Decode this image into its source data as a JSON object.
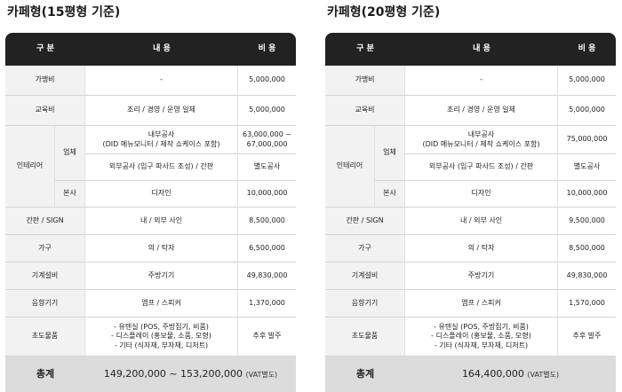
{
  "left": {
    "title": "카페형(15평형 기준)",
    "header": {
      "category": "구 분",
      "content": "내 용",
      "cost": "비 용"
    },
    "rows": {
      "franchise": {
        "category": "가맹비",
        "content": "-",
        "cost": "5,000,000"
      },
      "education": {
        "category": "교육비",
        "content": "조리 / 경영 / 운영 일체",
        "cost": "5,000,000"
      },
      "interior": {
        "category": "인테리어",
        "contractor_label": "업체",
        "internal_line1": "내부공사",
        "internal_line2": "(DID 메뉴모니터 / 제작 쇼케이스 포함)",
        "internal_cost_line1": "63,000,000 ~",
        "internal_cost_line2": "67,000,000",
        "external_content": "외부공사 (입구 파사드 조성) / 간판",
        "external_cost": "별도공사",
        "hq_label": "본사",
        "design_content": "디자인",
        "design_cost": "10,000,000"
      },
      "sign": {
        "category": "간판 / SIGN",
        "content": "내 / 외부 사인",
        "cost": "8,500,000"
      },
      "furniture": {
        "category": "가구",
        "content": "의 / 탁자",
        "cost": "6,500,000"
      },
      "equipment": {
        "category": "기계설비",
        "content": "주방기기",
        "cost": "49,830,000"
      },
      "audio": {
        "category": "음향기기",
        "content": "앰프 / 스피커",
        "cost": "1,370,000"
      },
      "initial": {
        "category": "초도물품",
        "line1": "- 유텐실 (POS, 주방집기, 비품)",
        "line2": "- 디스플레이 (홍보물, 소품, 모형)",
        "line3": "- 기타 (식자재, 부자재, 디저트)",
        "cost": "추후 발주"
      }
    },
    "total": {
      "label": "총계",
      "value": "149,200,000 ~ 153,200,000",
      "vat": "(VAT별도)"
    }
  },
  "right": {
    "title": "카페형(20평형 기준)",
    "header": {
      "category": "구 분",
      "content": "내 용",
      "cost": "비 용"
    },
    "rows": {
      "franchise": {
        "category": "가맹비",
        "content": "-",
        "cost": "5,000,000"
      },
      "education": {
        "category": "교육비",
        "content": "조리 / 경영 / 운영 일체",
        "cost": "5,000,000"
      },
      "interior": {
        "category": "인테리어",
        "contractor_label": "업체",
        "internal_line1": "내부공사",
        "internal_line2": "(DID 메뉴모니터 / 제작 쇼케이스 포함)",
        "internal_cost": "75,000,000",
        "external_content": "외부공사 (입구 파사드 조성) / 간판",
        "external_cost": "별도공사",
        "hq_label": "본사",
        "design_content": "디자인",
        "design_cost": "10,000,000"
      },
      "sign": {
        "category": "간판 / SIGN",
        "content": "내 / 외부 사인",
        "cost": "9,500,000"
      },
      "furniture": {
        "category": "가구",
        "content": "의 / 탁자",
        "cost": "8,500,000"
      },
      "equipment": {
        "category": "기계설비",
        "content": "주방기기",
        "cost": "49,830,000"
      },
      "audio": {
        "category": "음향기기",
        "content": "앰프 / 스피커",
        "cost": "1,570,000"
      },
      "initial": {
        "category": "초도물품",
        "line1": "- 유텐실 (POS, 주방집기, 비품)",
        "line2": "- 디스플레이 (홍보물, 소품, 모형)",
        "line3": "- 기타 (식자재, 부자재, 디저트)",
        "cost": "추후 발주"
      }
    },
    "total": {
      "label": "총계",
      "value": "164,400,000",
      "vat": "(VAT별도)"
    }
  }
}
